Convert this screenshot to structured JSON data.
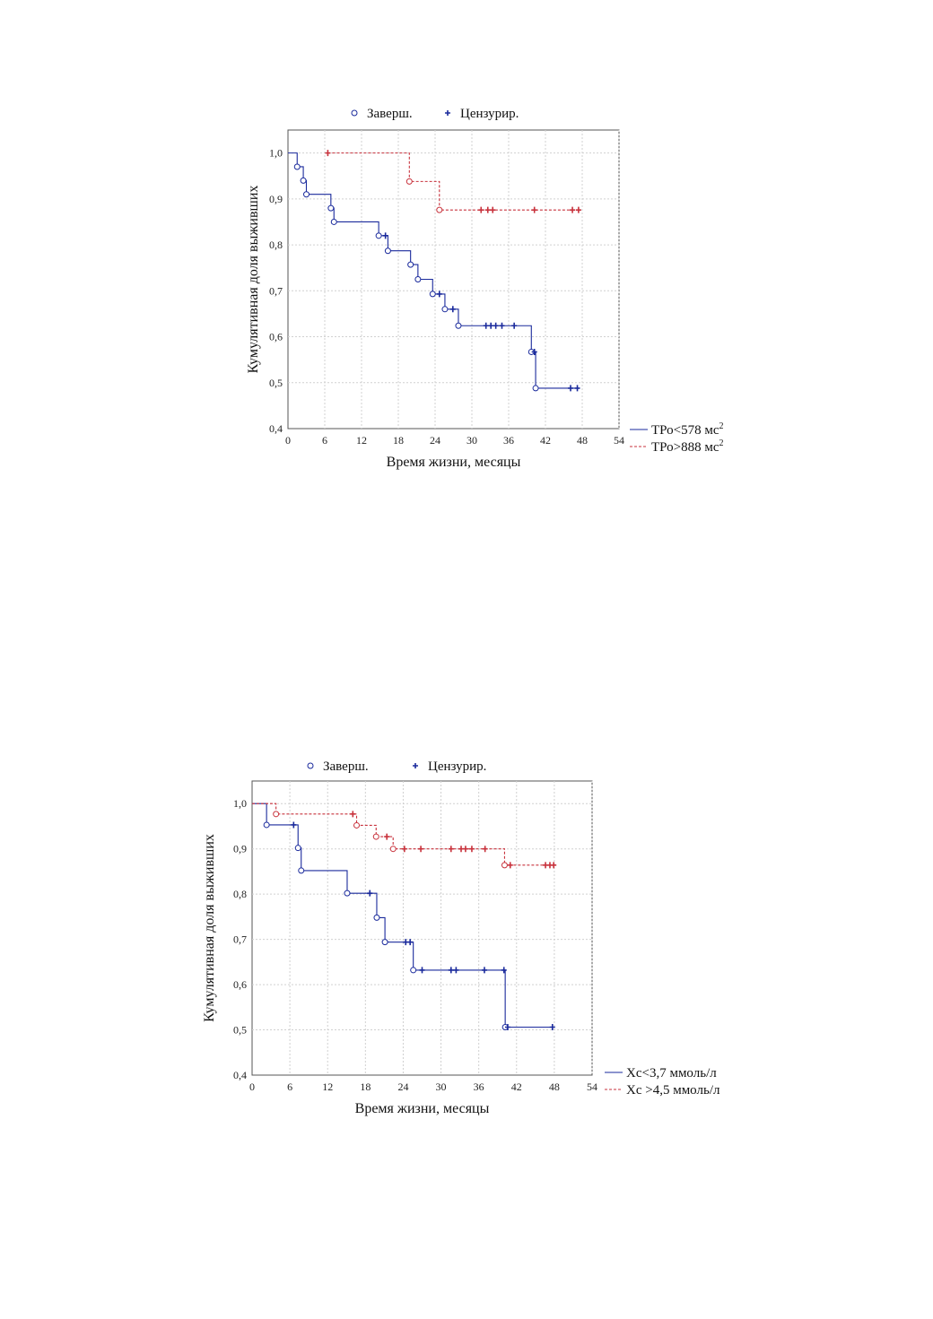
{
  "chart_data": [
    {
      "type": "line",
      "subtype": "kaplan-meier",
      "title": "",
      "xlabel": "Время жизни, месяцы",
      "ylabel": "Кумулятивная доля выживших",
      "xlim": [
        0,
        54
      ],
      "ylim": [
        0.4,
        1.05
      ],
      "x_ticks": [
        0,
        6,
        12,
        18,
        24,
        30,
        36,
        42,
        48,
        54
      ],
      "y_ticks": [
        0.4,
        0.5,
        0.6,
        0.7,
        0.8,
        0.9,
        1.0
      ],
      "x_tick_labels": [
        "0",
        "6",
        "12",
        "18",
        "24",
        "30",
        "36",
        "42",
        "48",
        "54"
      ],
      "y_tick_labels": [
        "0,4",
        "0,5",
        "0,6",
        "0,7",
        "0,8",
        "0,9",
        "1,0"
      ],
      "grid": true,
      "marker_legend": {
        "completed": "Заверш.",
        "censored": "Цензурир.",
        "placement": "top"
      },
      "series_legend_placement": "bottom-right",
      "series": [
        {
          "name": "ТРо<578 мс",
          "name_superscript": "2",
          "color": "#1a2a9c",
          "dashed": false,
          "start_y": 1.0,
          "steps": [
            [
              1.5,
              0.97
            ],
            [
              2.5,
              0.94
            ],
            [
              3,
              0.91
            ],
            [
              7,
              0.88
            ],
            [
              7.5,
              0.85
            ],
            [
              14.8,
              0.82
            ],
            [
              16.3,
              0.787
            ],
            [
              20,
              0.757
            ],
            [
              21.2,
              0.725
            ],
            [
              23.6,
              0.693
            ],
            [
              25.6,
              0.66
            ],
            [
              27.8,
              0.624
            ],
            [
              39.7,
              0.567
            ],
            [
              40.4,
              0.488
            ]
          ],
          "censored": [
            [
              15.9,
              0.82
            ],
            [
              24.7,
              0.693
            ],
            [
              26.9,
              0.66
            ],
            [
              32.3,
              0.624
            ],
            [
              33.1,
              0.624
            ],
            [
              33.9,
              0.624
            ],
            [
              34.9,
              0.624
            ],
            [
              36.9,
              0.624
            ],
            [
              40.2,
              0.567
            ],
            [
              46.1,
              0.488
            ],
            [
              47.2,
              0.488
            ]
          ],
          "end_x": 47.2
        },
        {
          "name": "ТРо>888 мс",
          "name_superscript": "2",
          "color": "#c8323c",
          "dashed": true,
          "start_x": 6.5,
          "start_y": 1.0,
          "steps": [
            [
              19.8,
              0.938
            ],
            [
              24.7,
              0.876
            ]
          ],
          "censored": [
            [
              6.5,
              1.0
            ],
            [
              31.5,
              0.876
            ],
            [
              32.6,
              0.876
            ],
            [
              33.4,
              0.876
            ],
            [
              40.2,
              0.876
            ],
            [
              46.4,
              0.876
            ],
            [
              47.4,
              0.876
            ]
          ],
          "end_x": 47.6
        }
      ]
    },
    {
      "type": "line",
      "subtype": "kaplan-meier",
      "title": "",
      "xlabel": "Время жизни, месяцы",
      "ylabel": "Кумулятивная доля выживших",
      "xlim": [
        0,
        54
      ],
      "ylim": [
        0.4,
        1.05
      ],
      "x_ticks": [
        0,
        6,
        12,
        18,
        24,
        30,
        36,
        42,
        48,
        54
      ],
      "y_ticks": [
        0.4,
        0.5,
        0.6,
        0.7,
        0.8,
        0.9,
        1.0
      ],
      "x_tick_labels": [
        "0",
        "6",
        "12",
        "18",
        "24",
        "30",
        "36",
        "42",
        "48",
        "54"
      ],
      "y_tick_labels": [
        "0,4",
        "0,5",
        "0,6",
        "0,7",
        "0,8",
        "0,9",
        "1,0"
      ],
      "grid": true,
      "marker_legend": {
        "completed": "Заверш.",
        "censored": "Цензурир.",
        "placement": "top"
      },
      "series_legend_placement": "bottom-right",
      "series": [
        {
          "name": "Хс<3,7 ммоль/л",
          "color": "#1a2a9c",
          "dashed": false,
          "start_y": 1.0,
          "steps": [
            [
              2.3,
              0.953
            ],
            [
              7.3,
              0.902
            ],
            [
              7.8,
              0.852
            ],
            [
              15.1,
              0.802
            ],
            [
              19.8,
              0.748
            ],
            [
              21.1,
              0.694
            ],
            [
              25.6,
              0.632
            ],
            [
              40.2,
              0.506
            ]
          ],
          "censored": [
            [
              6.6,
              0.953
            ],
            [
              18.7,
              0.802
            ],
            [
              24.4,
              0.694
            ],
            [
              25.1,
              0.694
            ],
            [
              27.0,
              0.632
            ],
            [
              31.6,
              0.632
            ],
            [
              32.4,
              0.632
            ],
            [
              36.9,
              0.632
            ],
            [
              40.0,
              0.632
            ],
            [
              40.6,
              0.506
            ],
            [
              47.7,
              0.506
            ]
          ],
          "end_x": 47.7
        },
        {
          "name": "Хс >4,5 ммоль/л",
          "color": "#c8323c",
          "dashed": true,
          "start_y": 1.0,
          "steps": [
            [
              3.8,
              0.977
            ],
            [
              16.6,
              0.952
            ],
            [
              19.7,
              0.927
            ],
            [
              22.4,
              0.9
            ],
            [
              40.1,
              0.864
            ]
          ],
          "censored": [
            [
              16.0,
              0.977
            ],
            [
              21.4,
              0.927
            ],
            [
              24.2,
              0.9
            ],
            [
              26.8,
              0.9
            ],
            [
              31.6,
              0.9
            ],
            [
              33.2,
              0.9
            ],
            [
              33.9,
              0.9
            ],
            [
              34.9,
              0.9
            ],
            [
              37.0,
              0.9
            ],
            [
              41.0,
              0.864
            ],
            [
              46.6,
              0.864
            ],
            [
              47.3,
              0.864
            ],
            [
              47.9,
              0.864
            ]
          ],
          "end_x": 48.1
        }
      ]
    }
  ]
}
